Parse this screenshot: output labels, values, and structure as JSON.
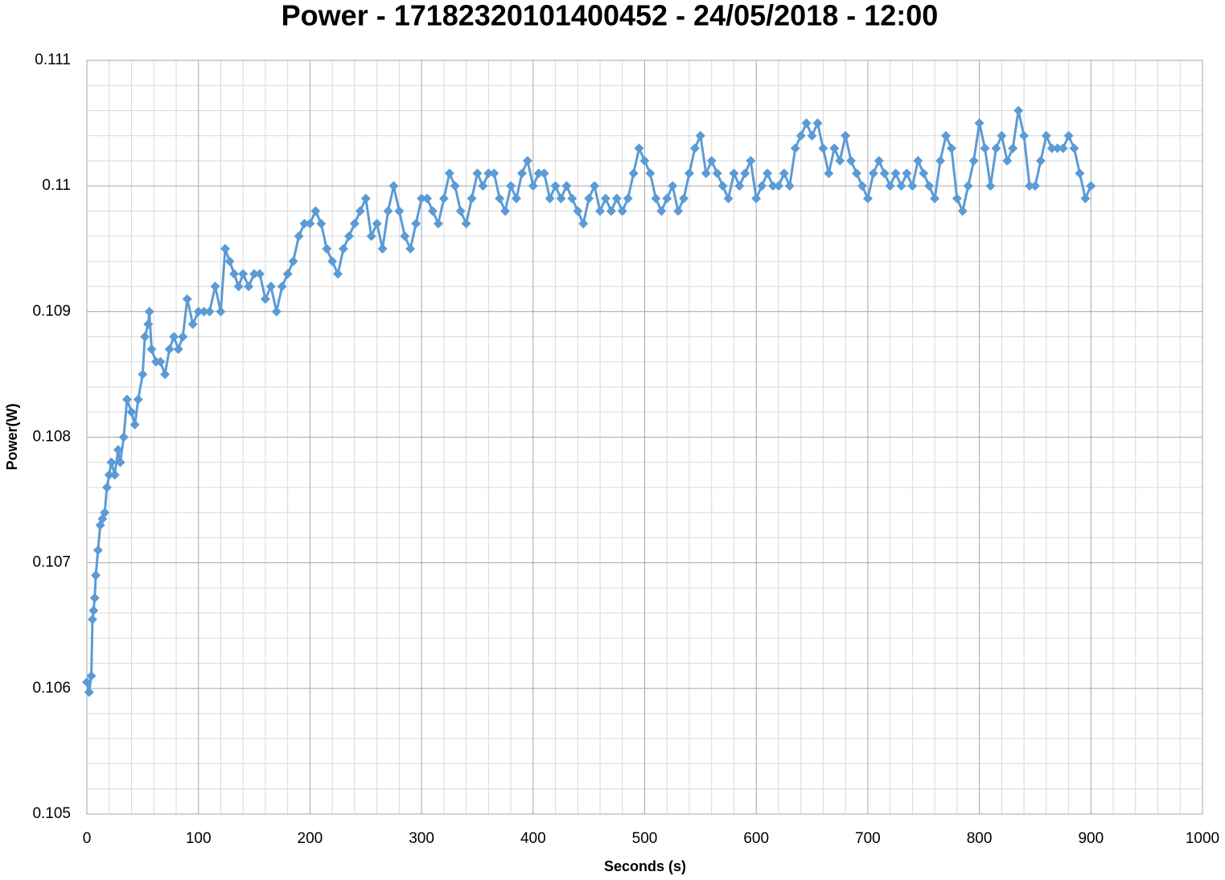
{
  "chart_data": {
    "type": "line",
    "title": "Power - 17182320101400452 - 24/05/2018 - 12:00",
    "x_label": "Seconds (s)",
    "y_label": "Power(W)",
    "x": [
      0,
      2,
      4,
      5,
      6,
      7,
      8,
      10,
      12,
      14,
      16,
      18,
      20,
      22,
      25,
      28,
      30,
      33,
      36,
      40,
      43,
      46,
      50,
      52,
      55,
      56,
      58,
      62,
      66,
      70,
      74,
      78,
      82,
      86,
      90,
      95,
      100,
      105,
      110,
      115,
      120,
      124,
      128,
      132,
      136,
      140,
      145,
      150,
      155,
      160,
      165,
      170,
      175,
      180,
      185,
      190,
      195,
      200,
      205,
      210,
      215,
      220,
      225,
      230,
      235,
      240,
      245,
      250,
      255,
      260,
      265,
      270,
      275,
      280,
      285,
      290,
      295,
      300,
      305,
      310,
      315,
      320,
      325,
      330,
      335,
      340,
      345,
      350,
      355,
      360,
      365,
      370,
      375,
      380,
      385,
      390,
      395,
      400,
      405,
      410,
      415,
      420,
      425,
      430,
      435,
      440,
      445,
      450,
      455,
      460,
      465,
      470,
      475,
      480,
      485,
      490,
      495,
      500,
      505,
      510,
      515,
      520,
      525,
      530,
      535,
      540,
      545,
      550,
      555,
      560,
      565,
      570,
      575,
      580,
      585,
      590,
      595,
      600,
      605,
      610,
      615,
      620,
      625,
      630,
      635,
      640,
      645,
      650,
      655,
      660,
      665,
      670,
      675,
      680,
      685,
      690,
      695,
      700,
      705,
      710,
      715,
      720,
      725,
      730,
      735,
      740,
      745,
      750,
      755,
      760,
      765,
      770,
      775,
      780,
      785,
      790,
      795,
      800,
      805,
      810,
      815,
      820,
      825,
      830,
      835,
      840,
      845,
      850,
      855,
      860,
      865,
      870,
      875,
      880,
      885,
      890,
      895,
      900
    ],
    "series": [
      {
        "name": "Power",
        "color": "#5b9bd5",
        "values": [
          0.10605,
          0.10597,
          0.1061,
          0.10655,
          0.10662,
          0.10672,
          0.1069,
          0.1071,
          0.1073,
          0.10735,
          0.1074,
          0.1076,
          0.1077,
          0.1078,
          0.1077,
          0.1079,
          0.1078,
          0.108,
          0.1083,
          0.1082,
          0.1081,
          0.1083,
          0.1085,
          0.1088,
          0.1089,
          0.109,
          0.1087,
          0.1086,
          0.1086,
          0.1085,
          0.1087,
          0.1088,
          0.1087,
          0.1088,
          0.1091,
          0.1089,
          0.109,
          0.109,
          0.109,
          0.1092,
          0.109,
          0.1095,
          0.1094,
          0.1093,
          0.1092,
          0.1093,
          0.1092,
          0.1093,
          0.1093,
          0.1091,
          0.1092,
          0.109,
          0.1092,
          0.1093,
          0.1094,
          0.1096,
          0.1097,
          0.1097,
          0.1098,
          0.1097,
          0.1095,
          0.1094,
          0.1093,
          0.1095,
          0.1096,
          0.1097,
          0.1098,
          0.1099,
          0.1096,
          0.1097,
          0.1095,
          0.1098,
          0.11,
          0.1098,
          0.1096,
          0.1095,
          0.1097,
          0.1099,
          0.1099,
          0.1098,
          0.1097,
          0.1099,
          0.1101,
          0.11,
          0.1098,
          0.1097,
          0.1099,
          0.1101,
          0.11,
          0.1101,
          0.1101,
          0.1099,
          0.1098,
          0.11,
          0.1099,
          0.1101,
          0.1102,
          0.11,
          0.1101,
          0.1101,
          0.1099,
          0.11,
          0.1099,
          0.11,
          0.1099,
          0.1098,
          0.1097,
          0.1099,
          0.11,
          0.1098,
          0.1099,
          0.1098,
          0.1099,
          0.1098,
          0.1099,
          0.1101,
          0.1103,
          0.1102,
          0.1101,
          0.1099,
          0.1098,
          0.1099,
          0.11,
          0.1098,
          0.1099,
          0.1101,
          0.1103,
          0.1104,
          0.1101,
          0.1102,
          0.1101,
          0.11,
          0.1099,
          0.1101,
          0.11,
          0.1101,
          0.1102,
          0.1099,
          0.11,
          0.1101,
          0.11,
          0.11,
          0.1101,
          0.11,
          0.1103,
          0.1104,
          0.1105,
          0.1104,
          0.1105,
          0.1103,
          0.1101,
          0.1103,
          0.1102,
          0.1104,
          0.1102,
          0.1101,
          0.11,
          0.1099,
          0.1101,
          0.1102,
          0.1101,
          0.11,
          0.1101,
          0.11,
          0.1101,
          0.11,
          0.1102,
          0.1101,
          0.11,
          0.1099,
          0.1102,
          0.1104,
          0.1103,
          0.1099,
          0.1098,
          0.11,
          0.1102,
          0.1105,
          0.1103,
          0.11,
          0.1103,
          0.1104,
          0.1102,
          0.1103,
          0.1106,
          0.1104,
          0.11,
          0.11,
          0.1102,
          0.1104,
          0.1103,
          0.1103,
          0.1103,
          0.1104,
          0.1103,
          0.1101,
          0.1099,
          0.11
        ]
      }
    ],
    "xlim": [
      0,
      1000
    ],
    "xticks": [
      0,
      100,
      200,
      300,
      400,
      500,
      600,
      700,
      800,
      900,
      1000
    ],
    "ylim": [
      0.105,
      0.111
    ],
    "yticks": [
      0.105,
      0.106,
      0.107,
      0.108,
      0.109,
      0.11,
      0.111
    ],
    "grid": true,
    "minor_grid": true
  }
}
